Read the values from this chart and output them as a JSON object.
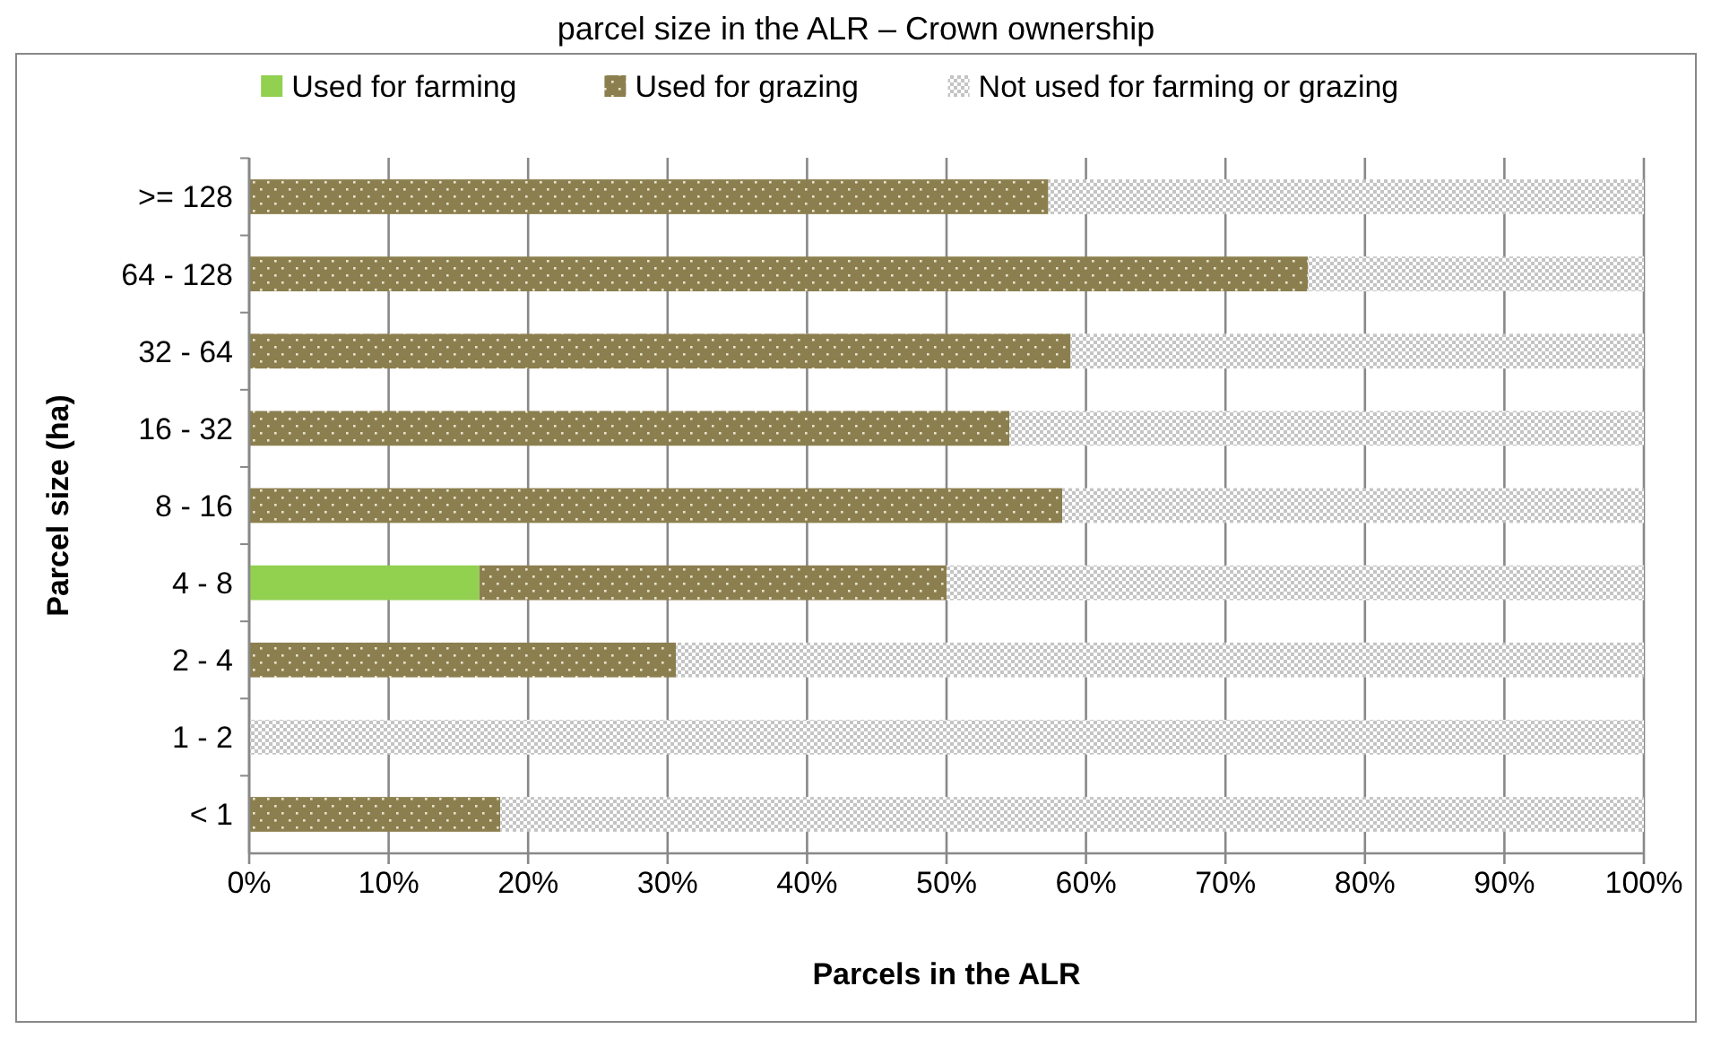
{
  "chart_data": {
    "type": "bar",
    "orientation": "horizontal",
    "stacked": true,
    "title": "parcel size in the ALR – Crown ownership",
    "xlabel": "Parcels in the ALR",
    "ylabel": "Parcel size (ha)",
    "categories": [
      ">= 128",
      "64 - 128",
      "32 - 64",
      "16 - 32",
      "8 - 16",
      "4 - 8",
      "2 - 4",
      "1 - 2",
      "< 1"
    ],
    "series": [
      {
        "name": "Used for farming",
        "color": "#92d050",
        "values": [
          0,
          0,
          0,
          0,
          0,
          16.5,
          0,
          0,
          0
        ]
      },
      {
        "name": "Used for grazing",
        "color": "#8c7f4f",
        "values": [
          57.3,
          75.9,
          58.9,
          54.5,
          58.3,
          33.5,
          30.6,
          0,
          18.0
        ]
      },
      {
        "name": "Not used for farming or grazing",
        "color": "#c4c4c4",
        "values": [
          42.7,
          24.1,
          41.1,
          45.5,
          41.7,
          50.0,
          69.4,
          100,
          82.0
        ]
      }
    ],
    "xlim": [
      0,
      100
    ],
    "xticks": [
      {
        "value": 0,
        "label": "0%"
      },
      {
        "value": 10,
        "label": "10%"
      },
      {
        "value": 20,
        "label": "20%"
      },
      {
        "value": 30,
        "label": "30%"
      },
      {
        "value": 40,
        "label": "40%"
      },
      {
        "value": 50,
        "label": "50%"
      },
      {
        "value": 60,
        "label": "60%"
      },
      {
        "value": 70,
        "label": "70%"
      },
      {
        "value": 80,
        "label": "80%"
      },
      {
        "value": 90,
        "label": "90%"
      },
      {
        "value": 100,
        "label": "100%"
      }
    ],
    "grid": "x",
    "legend": "top"
  }
}
